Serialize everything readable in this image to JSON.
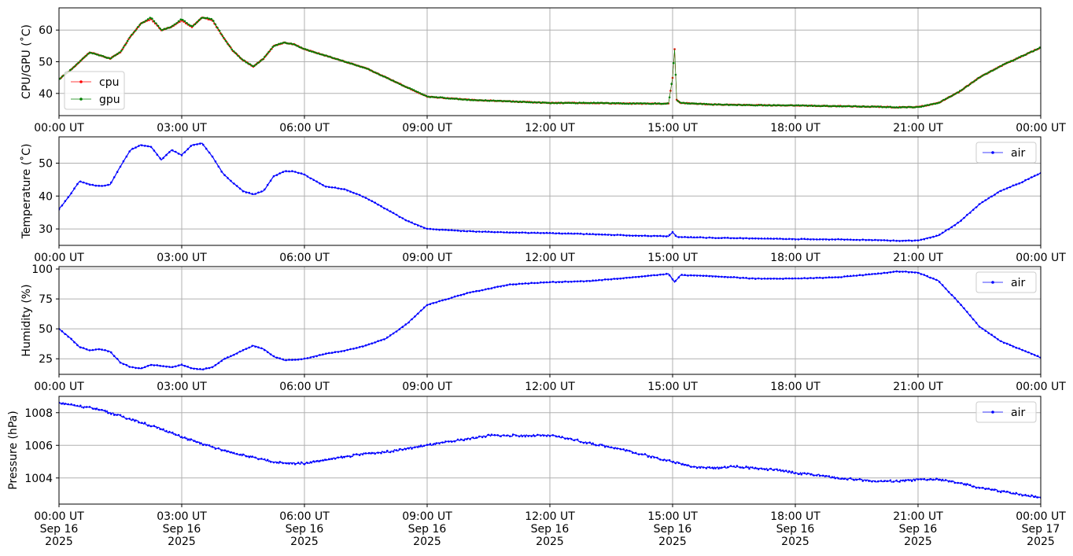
{
  "chart_data": [
    {
      "type": "line",
      "ylabel": "CPU/GPU (˚C)",
      "xlim": [
        "00:00 UT",
        "00:00 UT"
      ],
      "ylim": [
        33,
        67
      ],
      "yticks": [
        "40",
        "50",
        "60"
      ],
      "xticks": [
        "00:00 UT",
        "03:00 UT",
        "06:00 UT",
        "09:00 UT",
        "12:00 UT",
        "15:00 UT",
        "18:00 UT",
        "21:00 UT",
        "00:00 UT"
      ],
      "grid": true,
      "legend": "lower-left",
      "x_hours": [
        0,
        0.25,
        0.5,
        0.75,
        1.0,
        1.25,
        1.5,
        1.75,
        2.0,
        2.25,
        2.5,
        2.75,
        3.0,
        3.25,
        3.5,
        3.75,
        4.0,
        4.25,
        4.5,
        4.75,
        5.0,
        5.25,
        5.5,
        5.75,
        6.0,
        6.5,
        7.0,
        7.5,
        8.0,
        8.5,
        9.0,
        10.0,
        11.0,
        12.0,
        13.0,
        14.0,
        14.9,
        15.0,
        15.05,
        15.1,
        15.2,
        16.0,
        17.0,
        18.0,
        19.0,
        20.0,
        20.5,
        21.0,
        21.5,
        22.0,
        22.5,
        23.0,
        23.5,
        24.0
      ],
      "series": [
        {
          "name": "cpu",
          "color": "#ff0000",
          "values": [
            44.5,
            47,
            50,
            53,
            52,
            51,
            53,
            58,
            62,
            63.5,
            60,
            61,
            63,
            61,
            64,
            63,
            58,
            53.5,
            50.5,
            48.5,
            51,
            55,
            56,
            55.5,
            54,
            52,
            50,
            48,
            45,
            42,
            39,
            38,
            37.5,
            37,
            37,
            36.8,
            36.8,
            45,
            54,
            38,
            37,
            36.5,
            36.3,
            36.2,
            36,
            35.8,
            35.6,
            35.7,
            37,
            40.5,
            45,
            48.5,
            51.5,
            54.5
          ]
        },
        {
          "name": "gpu",
          "color": "#008000",
          "values": [
            44.5,
            47,
            50,
            53,
            52,
            51,
            53,
            58,
            62,
            64,
            60,
            61,
            63.5,
            61,
            64,
            63.5,
            58,
            53.5,
            50.5,
            48.5,
            51,
            55,
            56,
            55.5,
            54,
            52,
            50,
            48,
            45,
            42,
            39,
            38,
            37.5,
            37,
            37,
            36.8,
            36.8,
            45,
            54,
            38,
            37,
            36.5,
            36.3,
            36.2,
            36,
            35.8,
            35.6,
            35.7,
            37,
            40.5,
            45,
            48.5,
            51.5,
            54.5
          ]
        }
      ]
    },
    {
      "type": "line",
      "ylabel": "Temperature (˚C)",
      "xlim": [
        "00:00 UT",
        "00:00 UT"
      ],
      "ylim": [
        25,
        58
      ],
      "yticks": [
        "30",
        "40",
        "50"
      ],
      "xticks": [
        "00:00 UT",
        "03:00 UT",
        "06:00 UT",
        "09:00 UT",
        "12:00 UT",
        "15:00 UT",
        "18:00 UT",
        "21:00 UT",
        "00:00 UT"
      ],
      "grid": true,
      "legend": "upper-right",
      "x_hours": [
        0,
        0.25,
        0.5,
        0.75,
        1.0,
        1.25,
        1.5,
        1.75,
        2.0,
        2.25,
        2.5,
        2.75,
        3.0,
        3.25,
        3.5,
        3.75,
        4.0,
        4.25,
        4.5,
        4.75,
        5.0,
        5.25,
        5.5,
        5.75,
        6.0,
        6.5,
        7.0,
        7.5,
        8.0,
        8.5,
        9.0,
        10.0,
        11.0,
        12.0,
        13.0,
        14.0,
        14.9,
        15.0,
        15.1,
        15.2,
        16.0,
        17.0,
        18.0,
        19.0,
        20.0,
        20.5,
        21.0,
        21.5,
        22.0,
        22.5,
        23.0,
        23.5,
        24.0
      ],
      "series": [
        {
          "name": "air",
          "color": "#0000ff",
          "values": [
            36,
            40,
            44.5,
            43.5,
            43,
            43.5,
            49,
            54,
            55.5,
            55,
            51,
            54,
            52.5,
            55.5,
            56,
            52,
            47,
            44,
            41.5,
            40.5,
            41.5,
            46,
            47.5,
            47.5,
            46.5,
            43,
            42,
            39.5,
            36,
            32.5,
            30,
            29.3,
            28.9,
            28.7,
            28.4,
            28,
            27.8,
            29,
            27.6,
            27.5,
            27.3,
            27.1,
            26.9,
            26.8,
            26.6,
            26.4,
            26.5,
            28,
            32,
            37.5,
            41.5,
            44,
            47
          ]
        }
      ]
    },
    {
      "type": "line",
      "ylabel": "Humidity (%)",
      "xlim": [
        "00:00 UT",
        "00:00 UT"
      ],
      "ylim": [
        12,
        102
      ],
      "yticks": [
        "25",
        "50",
        "75",
        "100"
      ],
      "xticks": [
        "00:00 UT",
        "03:00 UT",
        "06:00 UT",
        "09:00 UT",
        "12:00 UT",
        "15:00 UT",
        "18:00 UT",
        "21:00 UT",
        "00:00 UT"
      ],
      "grid": true,
      "legend": "upper-right",
      "x_hours": [
        0,
        0.25,
        0.5,
        0.75,
        1.0,
        1.25,
        1.5,
        1.75,
        2.0,
        2.25,
        2.5,
        2.75,
        3.0,
        3.25,
        3.5,
        3.75,
        4.0,
        4.25,
        4.5,
        4.75,
        5.0,
        5.25,
        5.5,
        5.75,
        6.0,
        6.5,
        7.0,
        7.5,
        8.0,
        8.5,
        9.0,
        10.0,
        11.0,
        12.0,
        13.0,
        14.0,
        14.9,
        15.05,
        15.2,
        16.0,
        17.0,
        18.0,
        19.0,
        20.0,
        20.5,
        21.0,
        21.5,
        22.0,
        22.5,
        23.0,
        23.5,
        24.0
      ],
      "series": [
        {
          "name": "air",
          "color": "#0000ff",
          "values": [
            50,
            43,
            35,
            32,
            33,
            31,
            22,
            18,
            17,
            20,
            19,
            18,
            20,
            17,
            16,
            18,
            24,
            28,
            32,
            36,
            33,
            27,
            24,
            24,
            25,
            29,
            32,
            36,
            42,
            54,
            70,
            80,
            87,
            89,
            90,
            93,
            96,
            89,
            95,
            94,
            92,
            92,
            93,
            96,
            98,
            97,
            90,
            72,
            52,
            40,
            33,
            26
          ]
        }
      ]
    },
    {
      "type": "line",
      "ylabel": "Pressure (hPa)",
      "xlim": [
        "00:00 UT",
        "00:00 UT"
      ],
      "ylim": [
        1002.4,
        1009.0
      ],
      "yticks": [
        "1004",
        "1006",
        "1008"
      ],
      "xticks": [
        "00:00 UT\nSep 16\n2025",
        "03:00 UT\nSep 16\n2025",
        "06:00 UT\nSep 16\n2025",
        "09:00 UT\nSep 16\n2025",
        "12:00 UT\nSep 16\n2025",
        "15:00 UT\nSep 16\n2025",
        "18:00 UT\nSep 16\n2025",
        "21:00 UT\nSep 16\n2025",
        "00:00 UT\nSep 17\n2025"
      ],
      "grid": true,
      "legend": "upper-right",
      "x_hours": [
        0,
        0.5,
        1.0,
        1.5,
        2.0,
        2.5,
        3.0,
        3.5,
        4.0,
        4.5,
        5.0,
        5.5,
        6.0,
        6.5,
        7.0,
        7.5,
        8.0,
        8.5,
        9.0,
        9.5,
        10.0,
        10.5,
        11.0,
        11.5,
        12.0,
        12.5,
        13.0,
        13.5,
        14.0,
        14.5,
        15.0,
        15.5,
        16.0,
        16.5,
        17.0,
        17.5,
        18.0,
        18.5,
        19.0,
        19.5,
        20.0,
        20.5,
        21.0,
        21.5,
        22.0,
        22.5,
        23.0,
        23.5,
        24.0
      ],
      "series": [
        {
          "name": "air",
          "color": "#0000ff",
          "values": [
            1008.6,
            1008.4,
            1008.2,
            1007.8,
            1007.4,
            1007.0,
            1006.5,
            1006.1,
            1005.7,
            1005.4,
            1005.1,
            1004.9,
            1004.9,
            1005.1,
            1005.3,
            1005.5,
            1005.6,
            1005.8,
            1006.0,
            1006.2,
            1006.4,
            1006.6,
            1006.6,
            1006.6,
            1006.6,
            1006.4,
            1006.1,
            1005.9,
            1005.6,
            1005.3,
            1005.0,
            1004.7,
            1004.6,
            1004.7,
            1004.6,
            1004.5,
            1004.3,
            1004.2,
            1004.0,
            1003.9,
            1003.8,
            1003.8,
            1003.9,
            1003.9,
            1003.7,
            1003.4,
            1003.2,
            1003.0,
            1002.8
          ]
        }
      ]
    }
  ]
}
